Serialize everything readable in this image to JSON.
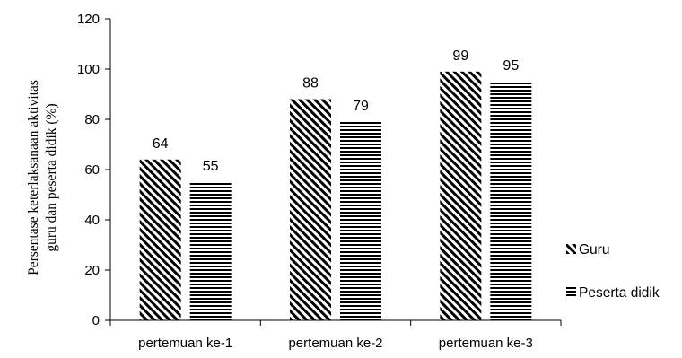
{
  "chart_data": {
    "type": "bar",
    "categories": [
      "pertemuan ke-1",
      "pertemuan ke-2",
      "pertemuan ke-3"
    ],
    "series": [
      {
        "name": "Guru",
        "values": [
          64,
          88,
          99
        ],
        "pattern": "diagonal-stripes"
      },
      {
        "name": "Peserta didik",
        "values": [
          55,
          79,
          95
        ],
        "pattern": "horizontal-stripes"
      }
    ],
    "ylabel_lines": [
      "Persentase keterlaksanaan aktivitas",
      "guru dan peserta didik (%)"
    ],
    "ylim": [
      0,
      120
    ],
    "yticks": [
      "0",
      "20",
      "40",
      "60",
      "80",
      "100",
      "120"
    ],
    "grid": false,
    "legend_position": "right",
    "data_labels": true,
    "colors": {
      "stroke": "#000000",
      "background": "#ffffff"
    }
  }
}
